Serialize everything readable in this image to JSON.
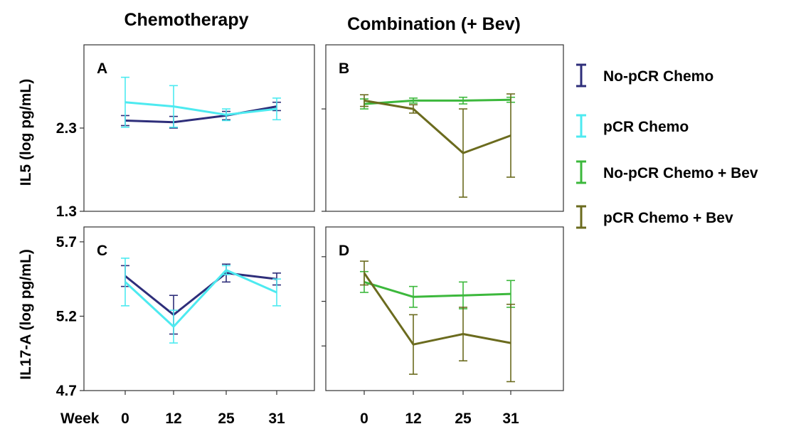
{
  "colors": {
    "no_pcr_chemo": "#2e2e7a",
    "pcr_chemo": "#4deaf0",
    "no_pcr_bev": "#3cb83c",
    "pcr_bev": "#6b6b1e"
  },
  "column_titles": [
    "Chemotherapy",
    "Combination (+ Bev)"
  ],
  "x_axis": {
    "label": "Week",
    "ticks": [
      "0",
      "12",
      "25",
      "31"
    ]
  },
  "legend": [
    {
      "key": "no_pcr_chemo",
      "label": "No-pCR Chemo",
      "color": "#2e2e7a"
    },
    {
      "key": "pcr_chemo",
      "label": "pCR Chemo",
      "color": "#4deaf0"
    },
    {
      "key": "no_pcr_bev",
      "label": "No-pCR Chemo + Bev",
      "color": "#3cb83c"
    },
    {
      "key": "pcr_bev",
      "label": "pCR Chemo + Bev",
      "color": "#6b6b1e"
    }
  ],
  "chart_data": [
    {
      "panel": "A",
      "type": "line",
      "ylabel": "IL5 (log pg/mL)",
      "ylim": [
        1.3,
        3.3
      ],
      "yticks": [
        1.3,
        2.3
      ],
      "x": [
        "0",
        "12",
        "25",
        "31"
      ],
      "series": [
        {
          "name": "No-pCR Chemo",
          "key": "no_pcr_chemo",
          "values": [
            2.39,
            2.37,
            2.45,
            2.56
          ],
          "errors": [
            0.06,
            0.07,
            0.05,
            0.05
          ]
        },
        {
          "name": "pCR Chemo",
          "key": "pcr_chemo",
          "values": [
            2.61,
            2.56,
            2.46,
            2.53
          ],
          "errors": [
            0.3,
            0.25,
            0.07,
            0.13
          ]
        }
      ]
    },
    {
      "panel": "B",
      "type": "line",
      "ylabel": "",
      "ylim": [
        1.3,
        3.3
      ],
      "yticks": [
        1.3,
        2.53
      ],
      "x": [
        "0",
        "12",
        "25",
        "31"
      ],
      "series": [
        {
          "name": "No-pCR Chemo + Bev",
          "key": "no_pcr_bev",
          "values": [
            2.59,
            2.63,
            2.63,
            2.64
          ],
          "errors": [
            0.06,
            0.03,
            0.04,
            0.03
          ]
        },
        {
          "name": "pCR Chemo + Bev",
          "key": "pcr_bev",
          "values": [
            2.63,
            2.53,
            2.0,
            2.21
          ],
          "errors": [
            0.07,
            0.05,
            0.53,
            0.5
          ]
        }
      ]
    },
    {
      "panel": "C",
      "type": "line",
      "ylabel": "IL17-A  (log pg/mL)",
      "ylim": [
        4.7,
        5.8
      ],
      "yticks": [
        4.7,
        5.2,
        5.7
      ],
      "x": [
        "0",
        "12",
        "25",
        "31"
      ],
      "series": [
        {
          "name": "No-pCR Chemo",
          "key": "no_pcr_chemo",
          "values": [
            5.47,
            5.21,
            5.49,
            5.45
          ],
          "errors": [
            0.07,
            0.13,
            0.06,
            0.04
          ]
        },
        {
          "name": "pCR Chemo",
          "key": "pcr_chemo",
          "values": [
            5.43,
            5.13,
            5.51,
            5.36
          ],
          "errors": [
            0.16,
            0.11,
            0.03,
            0.09
          ]
        }
      ]
    },
    {
      "panel": "D",
      "type": "line",
      "ylabel": "",
      "ylim": [
        4.7,
        5.8
      ],
      "yticks": [
        5.0,
        5.3,
        5.6
      ],
      "x": [
        "0",
        "12",
        "25",
        "31"
      ],
      "series": [
        {
          "name": "No-pCR Chemo + Bev",
          "key": "no_pcr_bev",
          "values": [
            5.43,
            5.33,
            5.34,
            5.35
          ],
          "errors": [
            0.07,
            0.07,
            0.09,
            0.09
          ]
        },
        {
          "name": "pCR Chemo + Bev",
          "key": "pcr_bev",
          "values": [
            5.49,
            5.01,
            5.08,
            5.02
          ],
          "errors": [
            0.08,
            0.2,
            0.18,
            0.26
          ]
        }
      ]
    }
  ]
}
